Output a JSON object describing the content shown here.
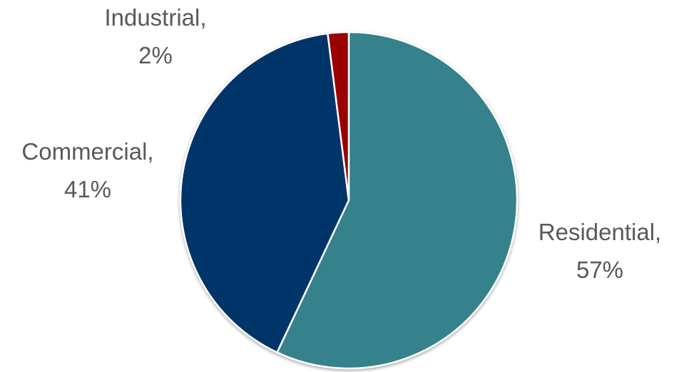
{
  "chart_data": {
    "type": "pie",
    "title": "",
    "categories": [
      "Residential",
      "Commercial",
      "Industrial"
    ],
    "values": [
      57,
      41,
      2
    ],
    "data_labels": [
      {
        "category": "Residential,",
        "percent": "57%"
      },
      {
        "category": "Commercial,",
        "percent": "41%"
      },
      {
        "category": "Industrial,",
        "percent": "2%"
      }
    ],
    "colors": [
      "#35818C",
      "#02356A",
      "#9A0000"
    ],
    "legend": "none",
    "start_angle": "12 o'clock",
    "direction": "clockwise"
  }
}
